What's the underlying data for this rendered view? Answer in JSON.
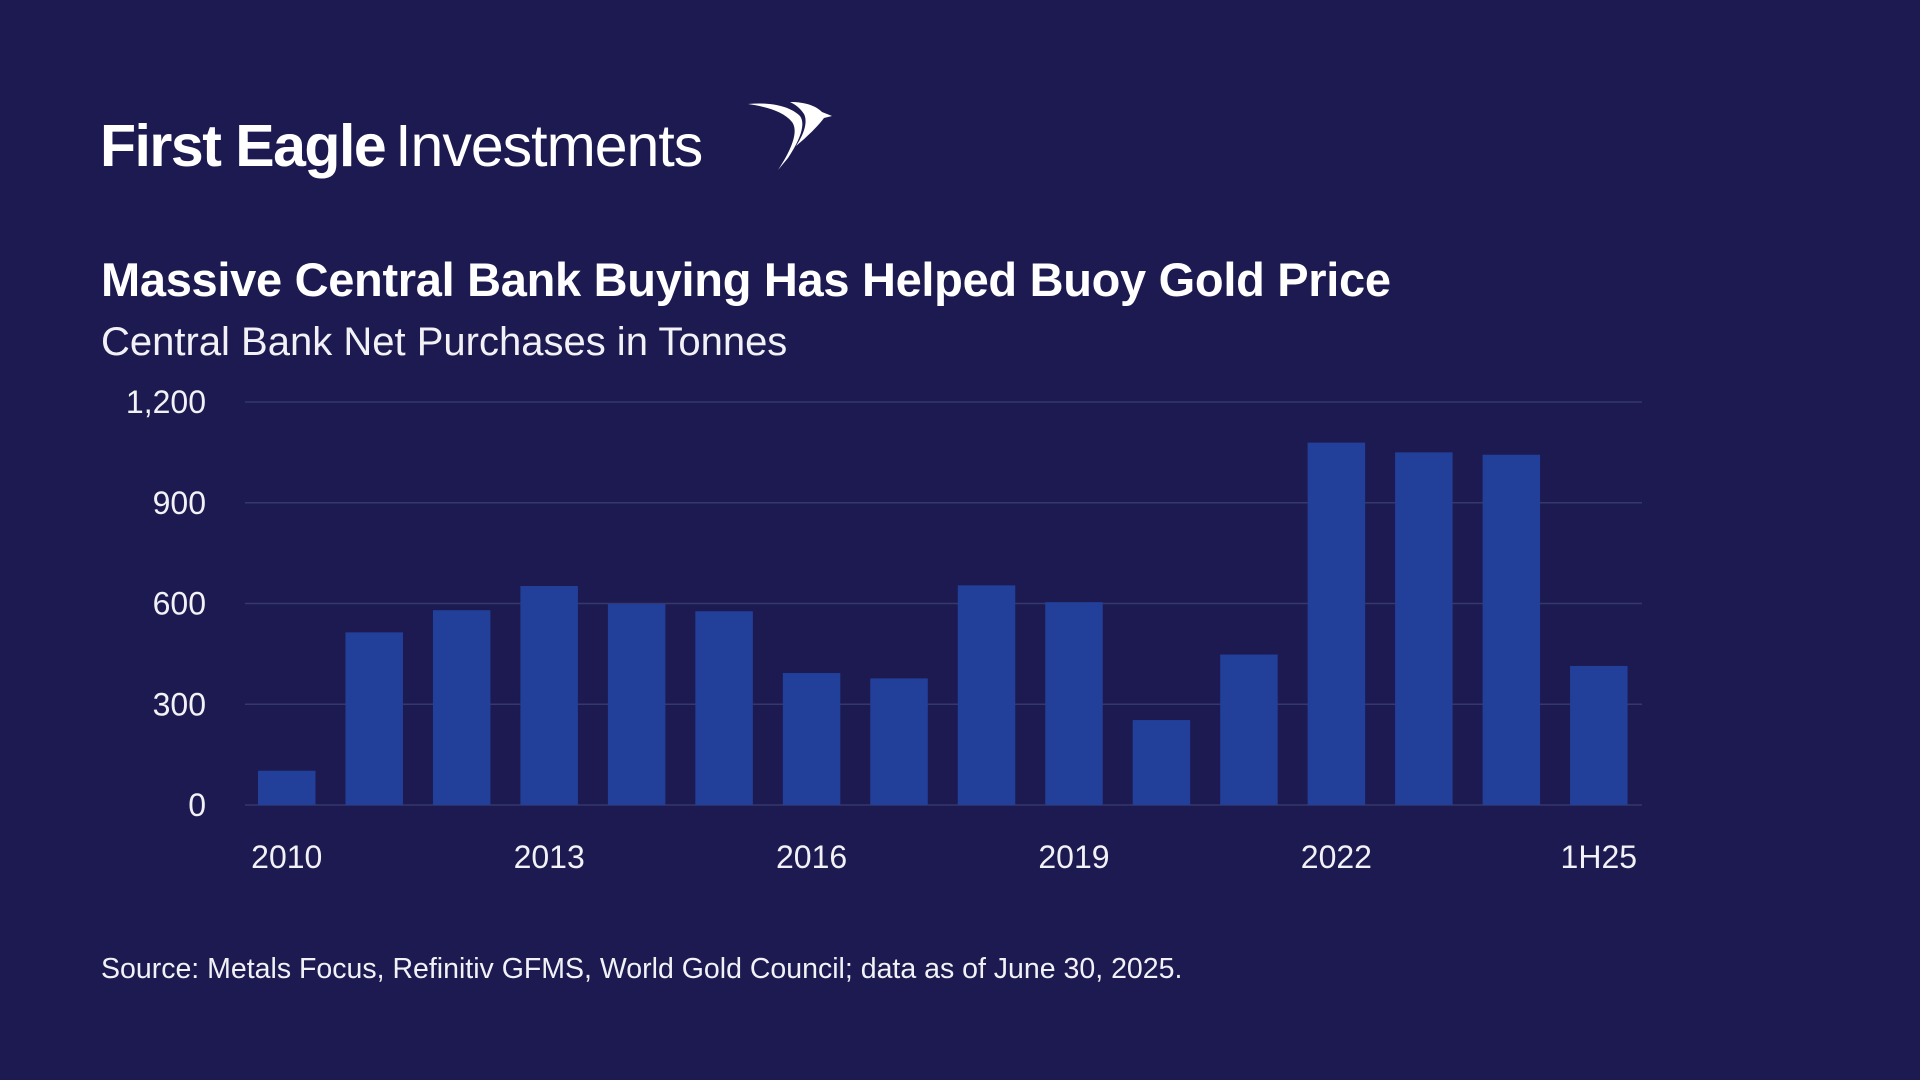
{
  "brand": {
    "name_bold": "First Eagle",
    "name_light": "Investments",
    "logo_icon": "eagle-wing-icon"
  },
  "colors": {
    "background": "#1c1a50",
    "bar": "#22409a",
    "gridline": "#35386a",
    "text": "#ffffff"
  },
  "chart_data": {
    "type": "bar",
    "title": "Massive Central Bank Buying Has Helped Buoy Gold Price",
    "subtitle": "Central Bank Net Purchases in Tonnes",
    "xlabel": "",
    "ylabel": "",
    "ylim": [
      0,
      1200
    ],
    "yticks": [
      0,
      300,
      600,
      900,
      1200
    ],
    "ytick_labels": [
      "0",
      "300",
      "600",
      "900",
      "1,200"
    ],
    "grid": true,
    "legend": "none",
    "categories": [
      "2010",
      "2011",
      "2012",
      "2013",
      "2014",
      "2015",
      "2016",
      "2017",
      "2018",
      "2019",
      "2020",
      "2021",
      "2022",
      "2023",
      "2024",
      "1H25"
    ],
    "xtick_labels_shown": [
      "2010",
      "2013",
      "2016",
      "2019",
      "2022",
      "1H25"
    ],
    "values": [
      102,
      514,
      580,
      652,
      599,
      577,
      393,
      377,
      654,
      604,
      253,
      448,
      1079,
      1050,
      1043,
      414
    ]
  },
  "source": "Source: Metals Focus, Refinitiv GFMS, World Gold Council; data as of June 30, 2025."
}
